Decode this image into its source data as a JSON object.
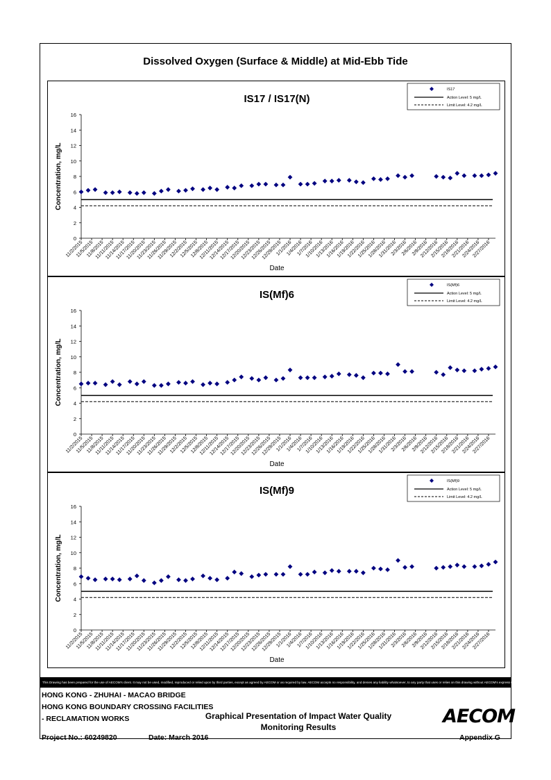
{
  "page": {
    "title": "Dissolved Oxygen (Surface & Middle) at Mid-Ebb Tide",
    "disclaimer": "This Drawing has been prepared for the use of AECOM's client. It may not be used, modified, reproduced or relied upon by third parties, except as agreed by AECOM or as required by law. AECOM accepts no responsibility, and denies any liability whatsoever, to any party that uses or relies on this drawing without AECOM's express written consent.",
    "project_line1": "HONG KONG - ZHUHAI - MACAO BRIDGE",
    "project_line2": "HONG KONG BOUNDARY CROSSING FACILITIES",
    "project_line3": "- RECLAMATION WORKS",
    "presentation_line1": "Graphical Presentation of Impact Water Quality",
    "presentation_line2": "Monitoring Results",
    "project_no": "Project No.: 60249820",
    "date": "Date: March 2016",
    "appendix": "Appendix G",
    "logo": "AECOM"
  },
  "chart_data": [
    {
      "type": "scatter",
      "title": "IS17 / IS17(N)",
      "xlabel": "Date",
      "ylabel": "Concentration, mg/L",
      "ylim": [
        0,
        16
      ],
      "yticks": [
        0,
        2,
        4,
        6,
        8,
        10,
        12,
        14,
        16
      ],
      "x_range": [
        "11/2/2015",
        "2/29/2016"
      ],
      "x_ticks": [
        "11/2/2015",
        "11/5/2015",
        "11/8/2015",
        "11/11/2015",
        "11/14/2015",
        "11/17/2015",
        "11/20/2015",
        "11/23/2015",
        "11/26/2015",
        "11/29/2015",
        "12/2/2015",
        "12/5/2015",
        "12/8/2015",
        "12/11/2015",
        "12/14/2015",
        "12/17/2015",
        "12/20/2015",
        "12/23/2015",
        "12/26/2015",
        "12/29/2015",
        "1/1/2016",
        "1/4/2016",
        "1/7/2016",
        "1/10/2016",
        "1/13/2016",
        "1/16/2016",
        "1/19/2016",
        "1/22/2016",
        "1/25/2016",
        "1/28/2016",
        "1/31/2016",
        "2/3/2016",
        "2/6/2016",
        "2/9/2016",
        "2/12/2016",
        "2/15/2016",
        "2/18/2016",
        "2/21/2016",
        "2/24/2016",
        "2/27/2016"
      ],
      "legend_position": "top-right",
      "series": [
        {
          "name": "IS17",
          "marker": "diamond",
          "color": "#000080",
          "points": [
            [
              "11/2/2015",
              6.0
            ],
            [
              "11/4/2015",
              6.2
            ],
            [
              "11/6/2015",
              6.3
            ],
            [
              "11/9/2015",
              5.9
            ],
            [
              "11/11/2015",
              5.9
            ],
            [
              "11/13/2015",
              6.0
            ],
            [
              "11/16/2015",
              5.9
            ],
            [
              "11/18/2015",
              5.8
            ],
            [
              "11/20/2015",
              5.9
            ],
            [
              "11/23/2015",
              5.8
            ],
            [
              "11/25/2015",
              6.1
            ],
            [
              "11/27/2015",
              6.3
            ],
            [
              "11/30/2015",
              6.1
            ],
            [
              "12/2/2015",
              6.2
            ],
            [
              "12/4/2015",
              6.4
            ],
            [
              "12/7/2015",
              6.3
            ],
            [
              "12/9/2015",
              6.5
            ],
            [
              "12/11/2015",
              6.3
            ],
            [
              "12/14/2015",
              6.6
            ],
            [
              "12/16/2015",
              6.5
            ],
            [
              "12/18/2015",
              6.8
            ],
            [
              "12/21/2015",
              6.8
            ],
            [
              "12/23/2015",
              7.0
            ],
            [
              "12/25/2015",
              7.0
            ],
            [
              "12/28/2015",
              6.9
            ],
            [
              "12/30/2015",
              6.9
            ],
            [
              "1/1/2016",
              7.9
            ],
            [
              "1/4/2016",
              7.0
            ],
            [
              "1/6/2016",
              7.0
            ],
            [
              "1/8/2016",
              7.1
            ],
            [
              "1/11/2016",
              7.4
            ],
            [
              "1/13/2016",
              7.4
            ],
            [
              "1/15/2016",
              7.5
            ],
            [
              "1/18/2016",
              7.5
            ],
            [
              "1/20/2016",
              7.3
            ],
            [
              "1/22/2016",
              7.2
            ],
            [
              "1/25/2016",
              7.7
            ],
            [
              "1/27/2016",
              7.6
            ],
            [
              "1/29/2016",
              7.7
            ],
            [
              "2/1/2016",
              8.1
            ],
            [
              "2/3/2016",
              7.9
            ],
            [
              "2/5/2016",
              8.1
            ],
            [
              "2/12/2016",
              8.0
            ],
            [
              "2/14/2016",
              7.9
            ],
            [
              "2/16/2016",
              7.8
            ],
            [
              "2/18/2016",
              8.4
            ],
            [
              "2/20/2016",
              8.1
            ],
            [
              "2/23/2016",
              8.1
            ],
            [
              "2/25/2016",
              8.1
            ],
            [
              "2/27/2016",
              8.2
            ],
            [
              "2/29/2016",
              8.4
            ]
          ]
        },
        {
          "name": "Action Level: 5 mg/L",
          "style": "solid",
          "value": 5
        },
        {
          "name": "Limit Level: 4.2 mg/L",
          "style": "dashed",
          "value": 4.2
        }
      ]
    },
    {
      "type": "scatter",
      "title": "IS(Mf)6",
      "xlabel": "Date",
      "ylabel": "Concentration, mg/L",
      "ylim": [
        0,
        16
      ],
      "yticks": [
        0,
        2,
        4,
        6,
        8,
        10,
        12,
        14,
        16
      ],
      "x_range": [
        "11/2/2015",
        "2/29/2016"
      ],
      "x_ticks": [
        "11/2/2015",
        "11/5/2015",
        "11/8/2015",
        "11/11/2015",
        "11/14/2015",
        "11/17/2015",
        "11/20/2015",
        "11/23/2015",
        "11/26/2015",
        "11/29/2015",
        "12/2/2015",
        "12/5/2015",
        "12/8/2015",
        "12/11/2015",
        "12/14/2015",
        "12/17/2015",
        "12/20/2015",
        "12/23/2015",
        "12/26/2015",
        "12/29/2015",
        "1/1/2016",
        "1/4/2016",
        "1/7/2016",
        "1/10/2016",
        "1/13/2016",
        "1/16/2016",
        "1/19/2016",
        "1/22/2016",
        "1/25/2016",
        "1/28/2016",
        "1/31/2016",
        "2/3/2016",
        "2/6/2016",
        "2/9/2016",
        "2/12/2016",
        "2/15/2016",
        "2/18/2016",
        "2/21/2016",
        "2/24/2016",
        "2/27/2016"
      ],
      "legend_position": "top-right",
      "series": [
        {
          "name": "IS(Mf)6",
          "marker": "diamond",
          "color": "#000080",
          "points": [
            [
              "11/2/2015",
              6.5
            ],
            [
              "11/4/2015",
              6.6
            ],
            [
              "11/6/2015",
              6.6
            ],
            [
              "11/9/2015",
              6.4
            ],
            [
              "11/11/2015",
              6.8
            ],
            [
              "11/13/2015",
              6.4
            ],
            [
              "11/16/2015",
              6.8
            ],
            [
              "11/18/2015",
              6.5
            ],
            [
              "11/20/2015",
              6.8
            ],
            [
              "11/23/2015",
              6.3
            ],
            [
              "11/25/2015",
              6.3
            ],
            [
              "11/27/2015",
              6.5
            ],
            [
              "11/30/2015",
              6.7
            ],
            [
              "12/2/2015",
              6.6
            ],
            [
              "12/4/2015",
              6.8
            ],
            [
              "12/7/2015",
              6.4
            ],
            [
              "12/9/2015",
              6.6
            ],
            [
              "12/11/2015",
              6.5
            ],
            [
              "12/14/2015",
              6.7
            ],
            [
              "12/16/2015",
              7.0
            ],
            [
              "12/18/2015",
              7.4
            ],
            [
              "12/21/2015",
              7.2
            ],
            [
              "12/23/2015",
              7.0
            ],
            [
              "12/25/2015",
              7.3
            ],
            [
              "12/28/2015",
              7.0
            ],
            [
              "12/30/2015",
              7.2
            ],
            [
              "1/1/2016",
              8.3
            ],
            [
              "1/4/2016",
              7.3
            ],
            [
              "1/6/2016",
              7.3
            ],
            [
              "1/8/2016",
              7.3
            ],
            [
              "1/11/2016",
              7.4
            ],
            [
              "1/13/2016",
              7.5
            ],
            [
              "1/15/2016",
              7.8
            ],
            [
              "1/18/2016",
              7.7
            ],
            [
              "1/20/2016",
              7.6
            ],
            [
              "1/22/2016",
              7.3
            ],
            [
              "1/25/2016",
              7.9
            ],
            [
              "1/27/2016",
              7.9
            ],
            [
              "1/29/2016",
              7.8
            ],
            [
              "2/1/2016",
              9.0
            ],
            [
              "2/3/2016",
              8.1
            ],
            [
              "2/5/2016",
              8.1
            ],
            [
              "2/12/2016",
              8.0
            ],
            [
              "2/14/2016",
              7.7
            ],
            [
              "2/16/2016",
              8.6
            ],
            [
              "2/18/2016",
              8.3
            ],
            [
              "2/20/2016",
              8.2
            ],
            [
              "2/23/2016",
              8.2
            ],
            [
              "2/25/2016",
              8.4
            ],
            [
              "2/27/2016",
              8.5
            ],
            [
              "2/29/2016",
              8.7
            ]
          ]
        },
        {
          "name": "Action Level: 5 mg/L",
          "style": "solid",
          "value": 5
        },
        {
          "name": "Limit Level: 4.2 mg/L",
          "style": "dashed",
          "value": 4.2
        }
      ]
    },
    {
      "type": "scatter",
      "title": "IS(Mf)9",
      "xlabel": "Date",
      "ylabel": "Concentration, mg/L",
      "ylim": [
        0,
        16
      ],
      "yticks": [
        0,
        2,
        4,
        6,
        8,
        10,
        12,
        14,
        16
      ],
      "x_range": [
        "11/2/2015",
        "2/29/2016"
      ],
      "x_ticks": [
        "11/2/2015",
        "11/5/2015",
        "11/8/2015",
        "11/11/2015",
        "11/14/2015",
        "11/17/2015",
        "11/20/2015",
        "11/23/2015",
        "11/26/2015",
        "11/29/2015",
        "12/2/2015",
        "12/5/2015",
        "12/8/2015",
        "12/11/2015",
        "12/14/2015",
        "12/17/2015",
        "12/20/2015",
        "12/23/2015",
        "12/26/2015",
        "12/29/2015",
        "1/1/2016",
        "1/4/2016",
        "1/7/2016",
        "1/10/2016",
        "1/13/2016",
        "1/16/2016",
        "1/19/2016",
        "1/22/2016",
        "1/25/2016",
        "1/28/2016",
        "1/31/2016",
        "2/3/2016",
        "2/6/2016",
        "2/9/2016",
        "2/12/2016",
        "2/15/2016",
        "2/18/2016",
        "2/21/2016",
        "2/24/2016",
        "2/27/2016"
      ],
      "legend_position": "top-right",
      "series": [
        {
          "name": "IS(Mf)9",
          "marker": "diamond",
          "color": "#000080",
          "points": [
            [
              "11/2/2015",
              6.9
            ],
            [
              "11/4/2015",
              6.7
            ],
            [
              "11/6/2015",
              6.5
            ],
            [
              "11/9/2015",
              6.6
            ],
            [
              "11/11/2015",
              6.6
            ],
            [
              "11/13/2015",
              6.5
            ],
            [
              "11/16/2015",
              6.6
            ],
            [
              "11/18/2015",
              7.0
            ],
            [
              "11/20/2015",
              6.4
            ],
            [
              "11/23/2015",
              6.1
            ],
            [
              "11/25/2015",
              6.4
            ],
            [
              "11/27/2015",
              6.9
            ],
            [
              "11/30/2015",
              6.5
            ],
            [
              "12/2/2015",
              6.4
            ],
            [
              "12/4/2015",
              6.6
            ],
            [
              "12/7/2015",
              7.0
            ],
            [
              "12/9/2015",
              6.7
            ],
            [
              "12/11/2015",
              6.5
            ],
            [
              "12/14/2015",
              6.7
            ],
            [
              "12/16/2015",
              7.5
            ],
            [
              "12/18/2015",
              7.3
            ],
            [
              "12/21/2015",
              6.9
            ],
            [
              "12/23/2015",
              7.1
            ],
            [
              "12/25/2015",
              7.2
            ],
            [
              "12/28/2015",
              7.2
            ],
            [
              "12/30/2015",
              7.2
            ],
            [
              "1/1/2016",
              8.2
            ],
            [
              "1/4/2016",
              7.2
            ],
            [
              "1/6/2016",
              7.2
            ],
            [
              "1/8/2016",
              7.5
            ],
            [
              "1/11/2016",
              7.4
            ],
            [
              "1/13/2016",
              7.7
            ],
            [
              "1/15/2016",
              7.6
            ],
            [
              "1/18/2016",
              7.6
            ],
            [
              "1/20/2016",
              7.6
            ],
            [
              "1/22/2016",
              7.4
            ],
            [
              "1/25/2016",
              8.0
            ],
            [
              "1/27/2016",
              7.9
            ],
            [
              "1/29/2016",
              7.8
            ],
            [
              "2/1/2016",
              9.0
            ],
            [
              "2/3/2016",
              8.1
            ],
            [
              "2/5/2016",
              8.2
            ],
            [
              "2/12/2016",
              8.0
            ],
            [
              "2/14/2016",
              8.1
            ],
            [
              "2/16/2016",
              8.2
            ],
            [
              "2/18/2016",
              8.4
            ],
            [
              "2/20/2016",
              8.2
            ],
            [
              "2/23/2016",
              8.2
            ],
            [
              "2/25/2016",
              8.3
            ],
            [
              "2/27/2016",
              8.5
            ],
            [
              "2/29/2016",
              8.8
            ]
          ]
        },
        {
          "name": "Action Level: 5 mg/L",
          "style": "solid",
          "value": 5
        },
        {
          "name": "Limit Level: 4.2 mg/L",
          "style": "dashed",
          "value": 4.2
        }
      ]
    }
  ]
}
